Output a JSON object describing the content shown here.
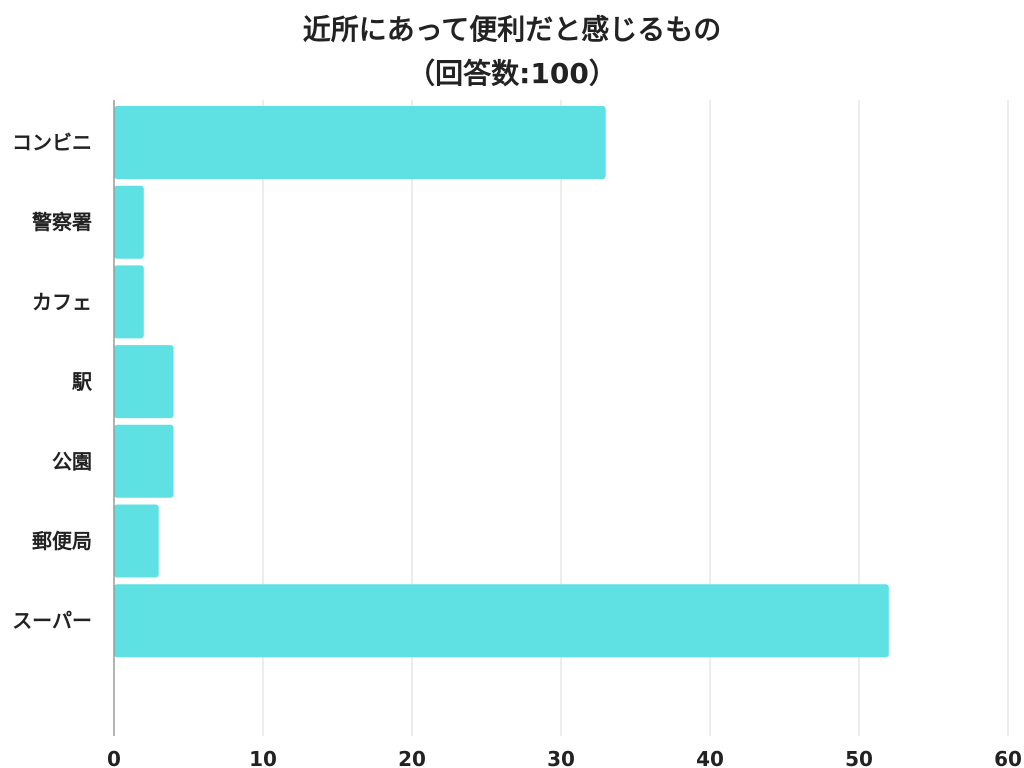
{
  "chart_data": {
    "type": "bar",
    "orientation": "horizontal",
    "title": "近所にあって便利だと感じるもの",
    "subtitle": "（回答数:100）",
    "categories": [
      "コンビニ",
      "警察署",
      "カフェ",
      "駅",
      "公園",
      "郵便局",
      "スーパー"
    ],
    "values": [
      33,
      2,
      2,
      4,
      4,
      3,
      52
    ],
    "xlim": [
      0,
      60
    ],
    "xticks": [
      "0",
      "10",
      "20",
      "30",
      "40",
      "50",
      "60"
    ],
    "xlabel": "",
    "ylabel": "",
    "grid": "vertical",
    "legend": "none",
    "bar_color": "#5fe1e4"
  }
}
